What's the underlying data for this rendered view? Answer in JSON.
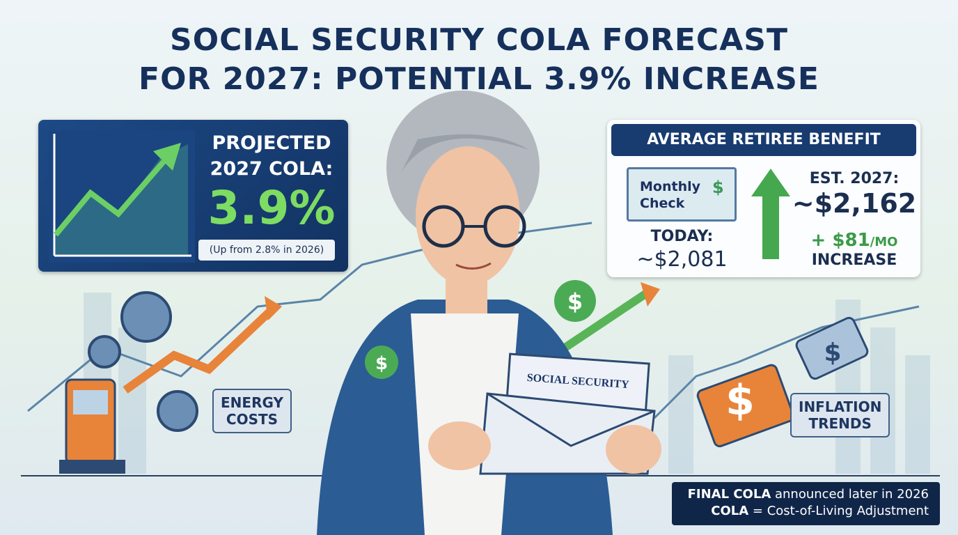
{
  "title": {
    "line1": "SOCIAL SECURITY COLA FORECAST",
    "line2": "FOR 2027: POTENTIAL 3.9% INCREASE"
  },
  "cola_panel": {
    "line1": "PROJECTED",
    "line2": "2027 COLA:",
    "value": "3.9%",
    "note": "(Up from 2.8% in 2026)"
  },
  "benefit_panel": {
    "header": "AVERAGE RETIREE BENEFIT",
    "check_line1": "Monthly",
    "check_line2": "Check",
    "today_label": "TODAY:",
    "today_value": "~$2,081",
    "est_label": "EST. 2027:",
    "est_value": "~$2,162",
    "increase_amount": "+ $81",
    "increase_unit": "/MO",
    "increase_label": "INCREASE"
  },
  "icon_symbol": "$",
  "labels": {
    "energy_line1": "ENERGY",
    "energy_line2": "COSTS",
    "inflation_line1": "INFLATION",
    "inflation_line2": "TRENDS"
  },
  "card": "SOCIAL SECURITY",
  "footer": {
    "line1_bold": "FINAL COLA",
    "line1_rest": " announced later in 2026",
    "line2_bold": "COLA",
    "line2_rest": " = Cost-of-Living Adjustment"
  }
}
